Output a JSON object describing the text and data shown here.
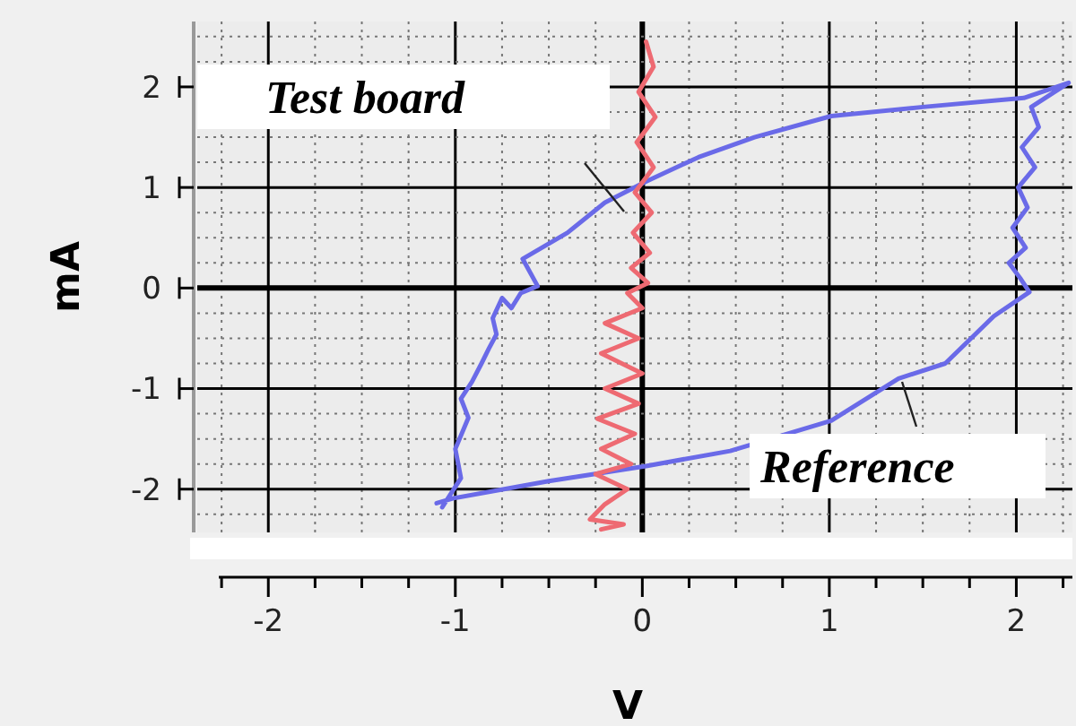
{
  "chart_data": {
    "type": "line",
    "xlabel": "V",
    "ylabel": "mA",
    "xlim": [
      -2.38,
      2.3
    ],
    "ylim": [
      -2.43,
      2.65
    ],
    "xticks": [
      {
        "value": -2.25,
        "label": null
      },
      -2,
      {
        "value": -1.75,
        "label": null
      },
      {
        "value": -1.5,
        "label": null
      },
      {
        "value": -1.25,
        "label": null
      },
      -1,
      {
        "value": -0.75,
        "label": null
      },
      {
        "value": -0.5,
        "label": null
      },
      {
        "value": -0.25,
        "label": null
      },
      0,
      {
        "value": 0.25,
        "label": null
      },
      {
        "value": 0.5,
        "label": null
      },
      {
        "value": 0.75,
        "label": null
      },
      1,
      {
        "value": 1.25,
        "label": null
      },
      {
        "value": 1.5,
        "label": null
      },
      {
        "value": 1.75,
        "label": null
      },
      2,
      {
        "value": 2.25,
        "label": null
      }
    ],
    "yticks": [
      {
        "value": -2.25,
        "label": null
      },
      -2,
      {
        "value": -1.75,
        "label": null
      },
      {
        "value": -1.5,
        "label": null
      },
      {
        "value": -1.25,
        "label": null
      },
      -1,
      {
        "value": -0.75,
        "label": null
      },
      {
        "value": -0.5,
        "label": null
      },
      {
        "value": -0.25,
        "label": null
      },
      0,
      {
        "value": 0.25,
        "label": null
      },
      {
        "value": 0.5,
        "label": null
      },
      {
        "value": 0.75,
        "label": null
      },
      1,
      {
        "value": 1.25,
        "label": null
      },
      {
        "value": 1.5,
        "label": null
      },
      {
        "value": 1.75,
        "label": null
      },
      2,
      {
        "value": 2.25,
        "label": null
      },
      {
        "value": 2.5,
        "label": null
      }
    ],
    "grid": true,
    "marker": "none",
    "line_style": "solid",
    "series": [
      {
        "color": "#6a6ae8",
        "x": [
          -1.07,
          -0.97,
          -1.0,
          -0.93,
          -0.97,
          -0.91,
          -0.86,
          -0.82,
          -0.78,
          -0.8,
          -0.75,
          -0.7,
          -0.65,
          -0.56,
          -0.64,
          -0.4,
          -0.2,
          0.02,
          0.3,
          0.6,
          1.01,
          1.5,
          2.04,
          2.28,
          2.08,
          2.12,
          2.03,
          2.1,
          2.01,
          2.06,
          1.98,
          2.05,
          1.96,
          2.02,
          2.07,
          1.88,
          1.62,
          1.37,
          1.01,
          0.47,
          0.02,
          -0.5,
          -1.01,
          -1.1
        ],
        "values": [
          -2.18,
          -1.89,
          -1.6,
          -1.29,
          -1.1,
          -0.93,
          -0.75,
          -0.6,
          -0.46,
          -0.3,
          -0.1,
          -0.2,
          -0.05,
          0.02,
          0.29,
          0.55,
          0.85,
          1.06,
          1.3,
          1.5,
          1.71,
          1.8,
          1.89,
          2.04,
          1.8,
          1.6,
          1.4,
          1.2,
          1.0,
          0.8,
          0.6,
          0.4,
          0.25,
          0.1,
          -0.04,
          -0.28,
          -0.75,
          -0.9,
          -1.32,
          -1.62,
          -1.77,
          -1.92,
          -2.09,
          -2.14
        ]
      },
      {
        "color": "#ee6a72",
        "x": [
          0.02,
          0.06,
          -0.02,
          0.07,
          -0.03,
          0.06,
          -0.04,
          0.05,
          -0.05,
          0.04,
          -0.06,
          0.03,
          -0.08,
          0.0,
          -0.2,
          -0.02,
          -0.22,
          0.0,
          -0.2,
          -0.02,
          -0.24,
          -0.04,
          -0.22,
          -0.06,
          -0.25,
          -0.08,
          -0.2,
          -0.28,
          -0.1,
          -0.22
        ],
        "values": [
          2.45,
          2.2,
          1.95,
          1.7,
          1.45,
          1.2,
          0.95,
          0.75,
          0.55,
          0.35,
          0.2,
          0.05,
          -0.05,
          -0.2,
          -0.35,
          -0.5,
          -0.65,
          -0.85,
          -1.0,
          -1.15,
          -1.3,
          -1.45,
          -1.6,
          -1.75,
          -1.85,
          -2.0,
          -2.15,
          -2.3,
          -2.35,
          -2.4
        ]
      }
    ],
    "annotations": [
      "Test board",
      "Reference"
    ]
  }
}
